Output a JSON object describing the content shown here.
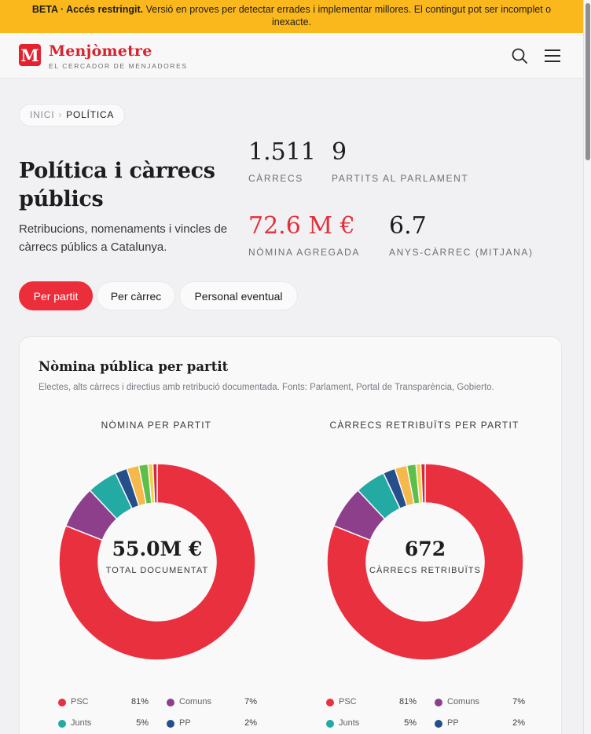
{
  "banner": {
    "strong": "BETA · Accés restringit.",
    "text": " Versió en proves per detectar errades i implementar millores. El contingut pot ser incomplet o inexacte."
  },
  "header": {
    "logo_letter": "M",
    "app_name": "Menjòmetre",
    "tagline": "EL CERCADOR DE MENJADORES",
    "search_icon": "search-icon",
    "menu_icon": "hamburger-menu-icon"
  },
  "breadcrumb": {
    "home": "INICI",
    "separator": "›",
    "current": "POLÍTICA"
  },
  "page": {
    "title": "Política i càrrecs públics",
    "subtitle": "Retribucions, nomenaments i vincles de càrrecs públics a Catalunya."
  },
  "stats": [
    {
      "value": "1.511",
      "label": "CÀRRECS"
    },
    {
      "value": "9",
      "label": "PARTITS AL PARLAMENT"
    },
    {
      "value": "72.6 M €",
      "label": "NÒMINA AGREGADA",
      "color": "#e3303c"
    },
    {
      "value": "6.7",
      "label": "ANYS-CÀRREC (MITJANA)"
    }
  ],
  "tabs": [
    {
      "label": "Per partit",
      "active": true
    },
    {
      "label": "Per càrrec",
      "active": false
    },
    {
      "label": "Personal eventual",
      "active": false
    }
  ],
  "card": {
    "title": "Nòmina pública per partit",
    "subtitle": "Electes, alts càrrecs i directius amb retribució documentada. Fonts: Parlament, Portal de Transparència, Gobierto."
  },
  "chart_data": [
    {
      "type": "pie",
      "title": "NÒMINA PER PARTIT",
      "center_value": "55.0M €",
      "center_label": "TOTAL DOCUMENTAT",
      "slices": [
        {
          "name": "PSC",
          "value": 81,
          "color": "#e8303f"
        },
        {
          "name": "Comuns",
          "value": 7,
          "color": "#8e3f8c"
        },
        {
          "name": "Junts",
          "value": 5,
          "color": "#22aaa3"
        },
        {
          "name": "PP",
          "value": 2,
          "color": "#254f8a"
        },
        {
          "name": "",
          "value": 2,
          "color": "#f5b84b"
        },
        {
          "name": "",
          "value": 1.5,
          "color": "#5cbf4a"
        },
        {
          "name": "",
          "value": 0.8,
          "color": "#f4cf4a"
        },
        {
          "name": "",
          "value": 0.7,
          "color": "#d6273a"
        }
      ],
      "legend": [
        {
          "name": "PSC",
          "pct": "81%",
          "color": "#e8303f"
        },
        {
          "name": "Comuns",
          "pct": "7%",
          "color": "#8e3f8c"
        },
        {
          "name": "Junts",
          "pct": "5%",
          "color": "#22aaa3"
        },
        {
          "name": "PP",
          "pct": "2%",
          "color": "#254f8a"
        }
      ]
    },
    {
      "type": "pie",
      "title": "CÀRRECS RETRIBUÏTS PER PARTIT",
      "center_value": "672",
      "center_label": "CÀRRECS RETRIBUÏTS",
      "slices": [
        {
          "name": "PSC",
          "value": 81,
          "color": "#e8303f"
        },
        {
          "name": "Comuns",
          "value": 7,
          "color": "#8e3f8c"
        },
        {
          "name": "Junts",
          "value": 5,
          "color": "#22aaa3"
        },
        {
          "name": "PP",
          "value": 2,
          "color": "#254f8a"
        },
        {
          "name": "",
          "value": 2,
          "color": "#f5b84b"
        },
        {
          "name": "",
          "value": 1.5,
          "color": "#5cbf4a"
        },
        {
          "name": "",
          "value": 0.8,
          "color": "#f4cf4a"
        },
        {
          "name": "",
          "value": 0.7,
          "color": "#d6273a"
        }
      ],
      "legend": [
        {
          "name": "PSC",
          "pct": "81%",
          "color": "#e8303f"
        },
        {
          "name": "Comuns",
          "pct": "7%",
          "color": "#8e3f8c"
        },
        {
          "name": "Junts",
          "pct": "5%",
          "color": "#22aaa3"
        },
        {
          "name": "PP",
          "pct": "2%",
          "color": "#254f8a"
        }
      ]
    }
  ]
}
